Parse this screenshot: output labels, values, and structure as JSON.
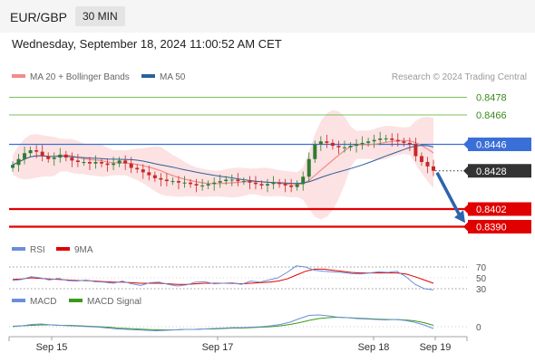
{
  "header": {
    "pair": "EUR/GBP",
    "timeframe": "30 MIN"
  },
  "datetime": "Wednesday, September 18, 2024 11:00:52 AM CET",
  "legend_main": [
    {
      "label": "MA 20 + Bollinger Bands",
      "color": "#f28b8b"
    },
    {
      "label": "MA 50",
      "color": "#2c5f9e"
    }
  ],
  "credit": "Research © 2024 Trading Central",
  "legend_rsi": [
    {
      "label": "RSI",
      "color": "#6a8fd8"
    },
    {
      "label": "9MA",
      "color": "#e00000"
    }
  ],
  "legend_macd": [
    {
      "label": "MACD",
      "color": "#6a8fd8"
    },
    {
      "label": "MACD Signal",
      "color": "#3a9a1a"
    }
  ],
  "colors": {
    "resistance": "#7cc05a",
    "resistance_text": "#3a8a1a",
    "support": "#e00000",
    "pivot": "#3a6fd8",
    "current": "#333333",
    "candle_up": "#2e7d32",
    "candle_down": "#c62828",
    "band_fill": "#fbd8d8",
    "arrow": "#2c64b0"
  },
  "chart_data": {
    "type": "candlestick",
    "price_axis": {
      "min": 0.8385,
      "max": 0.8482
    },
    "levels": [
      {
        "value": 0.8478,
        "label": "0.8478",
        "kind": "resistance"
      },
      {
        "value": 0.8466,
        "label": "0.8466",
        "kind": "resistance"
      },
      {
        "value": 0.8446,
        "label": "0.8446",
        "kind": "pivot"
      },
      {
        "value": 0.8428,
        "label": "0.8428",
        "kind": "current"
      },
      {
        "value": 0.8402,
        "label": "0.8402",
        "kind": "support"
      },
      {
        "value": 0.839,
        "label": "0.8390",
        "kind": "support"
      }
    ],
    "x_labels": [
      "Sep 15",
      "Sep 17",
      "Sep 18",
      "Sep 19"
    ],
    "close_path": [
      0.8432,
      0.8436,
      0.844,
      0.8442,
      0.8441,
      0.8438,
      0.8436,
      0.8437,
      0.8439,
      0.8437,
      0.8435,
      0.8434,
      0.8434,
      0.8433,
      0.8434,
      0.8433,
      0.8432,
      0.8433,
      0.8435,
      0.8433,
      0.843,
      0.8429,
      0.8427,
      0.8425,
      0.8423,
      0.8422,
      0.8421,
      0.8421,
      0.842,
      0.842,
      0.8419,
      0.8418,
      0.8418,
      0.8419,
      0.842,
      0.8421,
      0.8422,
      0.8422,
      0.8421,
      0.8421,
      0.842,
      0.8419,
      0.8418,
      0.8419,
      0.842,
      0.8419,
      0.8418,
      0.8417,
      0.8419,
      0.8424,
      0.8436,
      0.8446,
      0.8448,
      0.8447,
      0.8445,
      0.8444,
      0.8444,
      0.8445,
      0.8446,
      0.8447,
      0.8448,
      0.8449,
      0.845,
      0.845,
      0.8449,
      0.8448,
      0.8447,
      0.8446,
      0.8438,
      0.8434,
      0.8431,
      0.8428
    ],
    "ma20_end": 0.8444,
    "ma50_end": 0.8438,
    "forecast": {
      "from": 0.8428,
      "to": 0.8392
    },
    "rsi": {
      "ticks": [
        70,
        50,
        30
      ],
      "rsi_series": [
        45,
        47,
        52,
        50,
        46,
        49,
        45,
        44,
        46,
        43,
        42,
        40,
        44,
        39,
        36,
        41,
        42,
        38,
        35,
        37,
        42,
        43,
        39,
        40,
        41,
        38,
        44,
        42,
        46,
        50,
        60,
        72,
        70,
        64,
        62,
        61,
        60,
        58,
        57,
        59,
        61,
        60,
        62,
        52,
        38,
        30,
        28
      ],
      "ma_series": [
        47,
        48,
        50,
        49,
        48,
        47,
        46,
        45,
        45,
        44,
        43,
        42,
        42,
        41,
        40,
        40,
        40,
        39,
        38,
        38,
        39,
        40,
        40,
        40,
        40,
        39,
        40,
        41,
        42,
        44,
        48,
        55,
        62,
        66,
        66,
        64,
        62,
        60,
        59,
        59,
        59,
        59,
        59,
        57,
        52,
        46,
        40
      ]
    },
    "macd": {
      "zero_label": "0",
      "macd_series": [
        0,
        2,
        5,
        6,
        4,
        3,
        2,
        1,
        0,
        -1,
        -3,
        -5,
        -6,
        -7,
        -8,
        -9,
        -8,
        -7,
        -6,
        -6,
        -5,
        -4,
        -3,
        -2,
        -2,
        -1,
        0,
        2,
        5,
        10,
        18,
        25,
        26,
        24,
        21,
        20,
        18,
        17,
        16,
        15,
        16,
        14,
        10,
        4,
        -4
      ],
      "signal_series": [
        1,
        2,
        3,
        4,
        4,
        3,
        3,
        2,
        1,
        0,
        -1,
        -3,
        -4,
        -5,
        -6,
        -7,
        -7,
        -7,
        -6,
        -6,
        -5,
        -5,
        -4,
        -3,
        -3,
        -2,
        -1,
        0,
        2,
        5,
        9,
        14,
        18,
        20,
        21,
        20,
        19,
        18,
        17,
        16,
        16,
        15,
        13,
        9,
        3
      ]
    }
  }
}
